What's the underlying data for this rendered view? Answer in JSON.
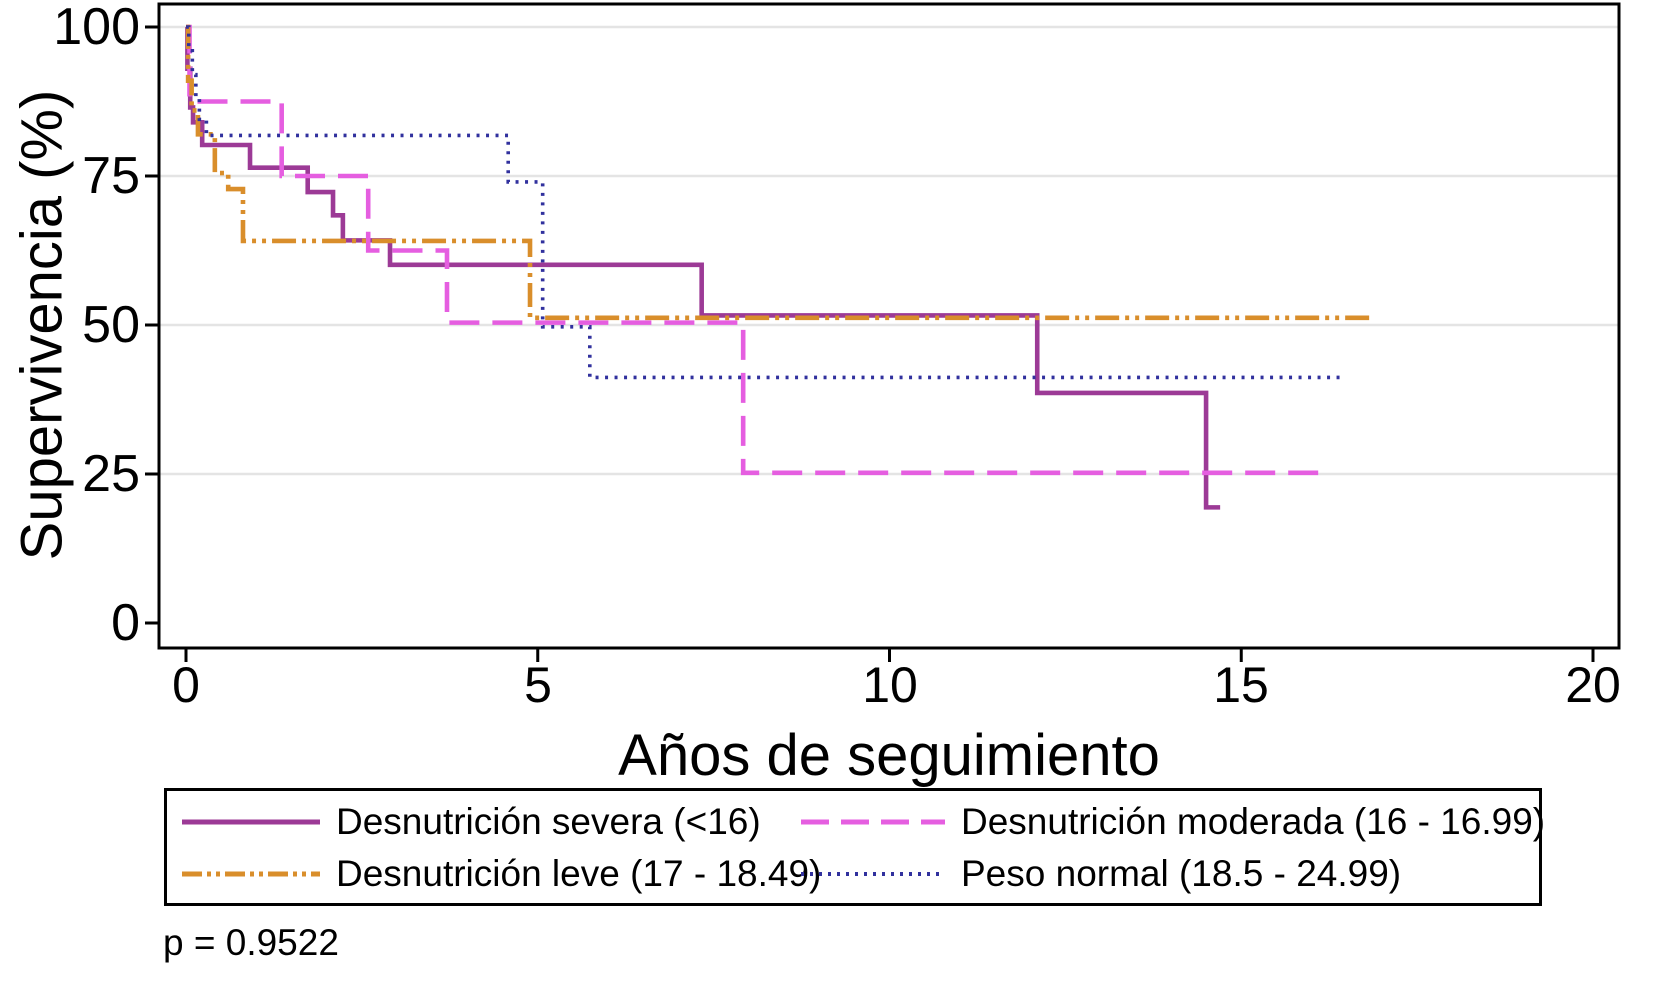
{
  "figure": {
    "y_axis": {
      "title": "Supervivencia (%)",
      "ticks": [
        "100",
        "75",
        "50",
        "25",
        "0"
      ]
    },
    "x_axis": {
      "title": "Años de seguimiento",
      "ticks": [
        "0",
        "5",
        "10",
        "15",
        "20"
      ]
    },
    "p_value_label": "p = 0.9522"
  },
  "chart_data": {
    "type": "line",
    "subtype": "kaplan-meier-step-survival",
    "title": "",
    "xlabel": "Años de seguimiento",
    "ylabel": "Supervivencia (%)",
    "xlim": [
      0,
      20
    ],
    "ylim": [
      0,
      100
    ],
    "x_ticks": [
      0,
      5,
      10,
      15,
      20
    ],
    "y_ticks": [
      0,
      25,
      50,
      75,
      100
    ],
    "grid": "horizontal-light-gray-at-25-50-75-100",
    "gridline_color": "#e4e4e4",
    "legend_position": "bottom-box",
    "annotation": "p = 0.9522",
    "series": [
      {
        "name": "Desnutrición severa (<16)",
        "color": "#9c3a96",
        "style": "solid",
        "steps": [
          [
            0,
            100
          ],
          [
            0.02,
            93
          ],
          [
            0.06,
            86.5
          ],
          [
            0.1,
            84
          ],
          [
            0.23,
            80.2
          ],
          [
            0.91,
            76.4
          ],
          [
            1.73,
            72.3
          ],
          [
            2.09,
            68.4
          ],
          [
            2.23,
            64.2
          ],
          [
            2.9,
            60.1
          ],
          [
            7.33,
            51.6
          ],
          [
            12.1,
            38.6
          ],
          [
            14.5,
            19.4
          ]
        ],
        "end_t": 14.7
      },
      {
        "name": "Desnutrición moderada (16 - 16.99)",
        "color": "#e55ee0",
        "style": "dashed",
        "steps": [
          [
            0,
            100
          ],
          [
            0.05,
            87.5
          ],
          [
            1.36,
            75
          ],
          [
            2.59,
            62.5
          ],
          [
            3.71,
            50.4
          ],
          [
            7.92,
            25.2
          ]
        ],
        "end_t": 16.2
      },
      {
        "name": "Desnutrición leve (17 - 18.49)",
        "color": "#d98e2b",
        "style": "dash-dot",
        "steps": [
          [
            0,
            100
          ],
          [
            0.03,
            91
          ],
          [
            0.08,
            86
          ],
          [
            0.17,
            82
          ],
          [
            0.41,
            75.5
          ],
          [
            0.6,
            72.8
          ],
          [
            0.81,
            64.1
          ],
          [
            4.89,
            51.2
          ]
        ],
        "end_t": 16.9
      },
      {
        "name": "Peso normal (18.5 - 24.99)",
        "color": "#31319e",
        "style": "dotted",
        "steps": [
          [
            0,
            100
          ],
          [
            0.04,
            96
          ],
          [
            0.09,
            92
          ],
          [
            0.14,
            88
          ],
          [
            0.19,
            84.5
          ],
          [
            0.29,
            81.8
          ],
          [
            4.58,
            74.0
          ],
          [
            5.07,
            49.7
          ],
          [
            5.74,
            41.2
          ]
        ],
        "end_t": 16.4
      }
    ]
  }
}
